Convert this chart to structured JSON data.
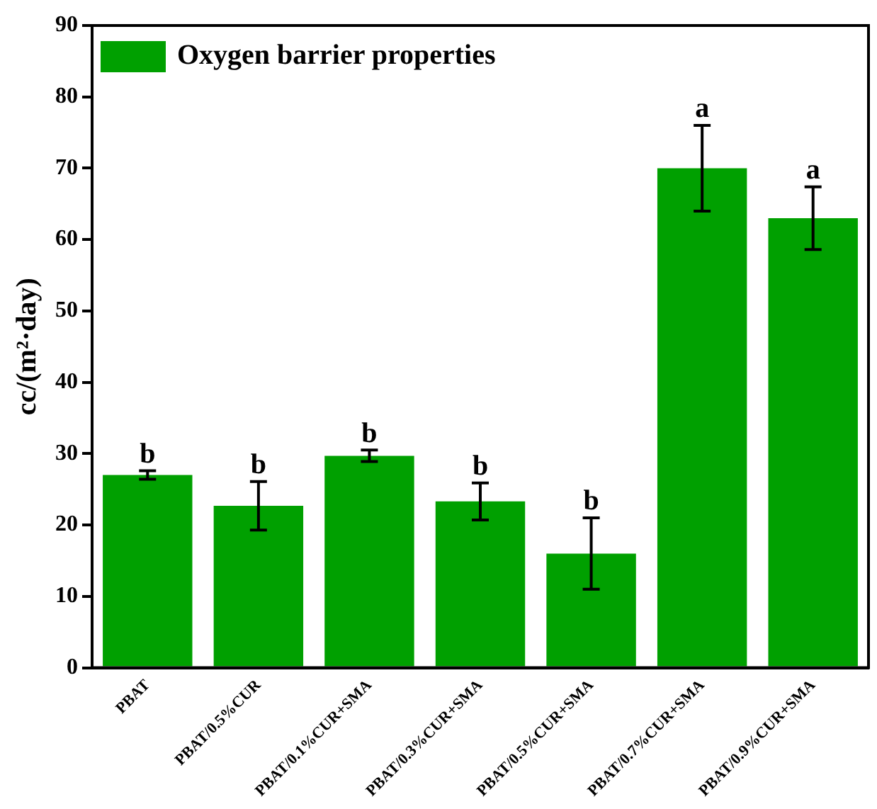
{
  "chart_data": {
    "type": "bar",
    "ylabel": "cc/(m²·day)",
    "categories": [
      "PBAT",
      "PBAT/0.5%CUR",
      "PBAT/0.1%CUR+SMA",
      "PBAT/0.3%CUR+SMA",
      "PBAT/0.5%CUR+SMA",
      "PBAT/0.7%CUR+SMA",
      "PBAT/0.9%CUR+SMA"
    ],
    "series": [
      {
        "name": "Oxygen barrier properties",
        "color": "#00a000",
        "values": [
          27,
          22.7,
          29.7,
          23.3,
          16,
          70,
          63
        ],
        "errors": [
          0.6,
          3.4,
          0.8,
          2.6,
          5,
          6,
          4.4
        ]
      }
    ],
    "ylim": [
      0,
      90
    ],
    "yticks": [
      0,
      10,
      20,
      30,
      40,
      50,
      60,
      70,
      80,
      90
    ],
    "grid": false,
    "legend": "top left",
    "annotations": [
      {
        "text": "b",
        "x": "PBAT",
        "y": 27.6
      },
      {
        "text": "b",
        "x": "PBAT/0.5%CUR",
        "y": 26.1
      },
      {
        "text": "b",
        "x": "PBAT/0.1%CUR+SMA",
        "y": 30.5
      },
      {
        "text": "b",
        "x": "PBAT/0.3%CUR+SMA",
        "y": 25.9
      },
      {
        "text": "b",
        "x": "PBAT/0.5%CUR+SMA",
        "y": 21
      },
      {
        "text": "a",
        "x": "PBAT/0.7%CUR+SMA",
        "y": 76
      },
      {
        "text": "a",
        "x": "PBAT/0.9%CUR+SMA",
        "y": 67.4
      }
    ]
  }
}
